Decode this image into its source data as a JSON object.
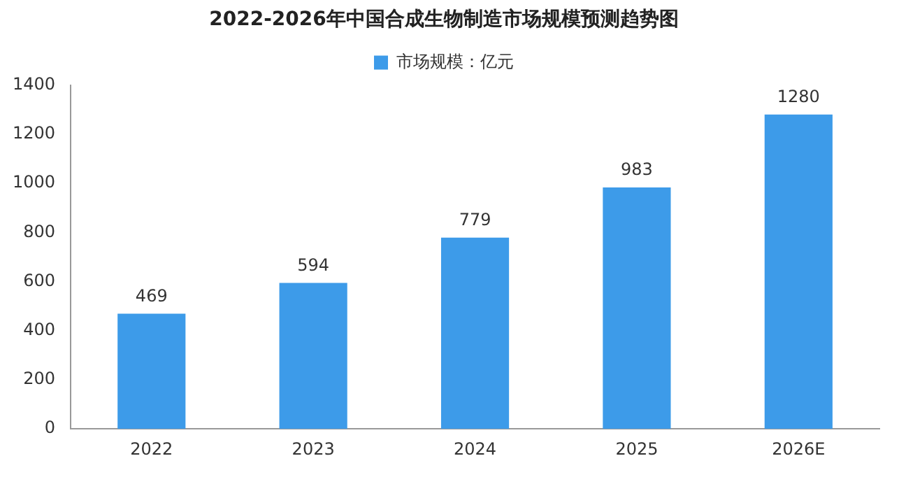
{
  "chart_data": {
    "type": "bar",
    "title": "2022-2026年中国合成生物制造市场规模预测趋势图",
    "categories": [
      "2022",
      "2023",
      "2024",
      "2025",
      "2026E"
    ],
    "series": [
      {
        "name": "市场规模：亿元",
        "color": "#3d9be9",
        "values": [
          469,
          594,
          779,
          983,
          1280
        ]
      }
    ],
    "ylim": [
      0,
      1400
    ],
    "yticks": [
      0,
      200,
      400,
      600,
      800,
      1000,
      1200,
      1400
    ],
    "grid": false,
    "legend": "top",
    "data_labels": true
  }
}
